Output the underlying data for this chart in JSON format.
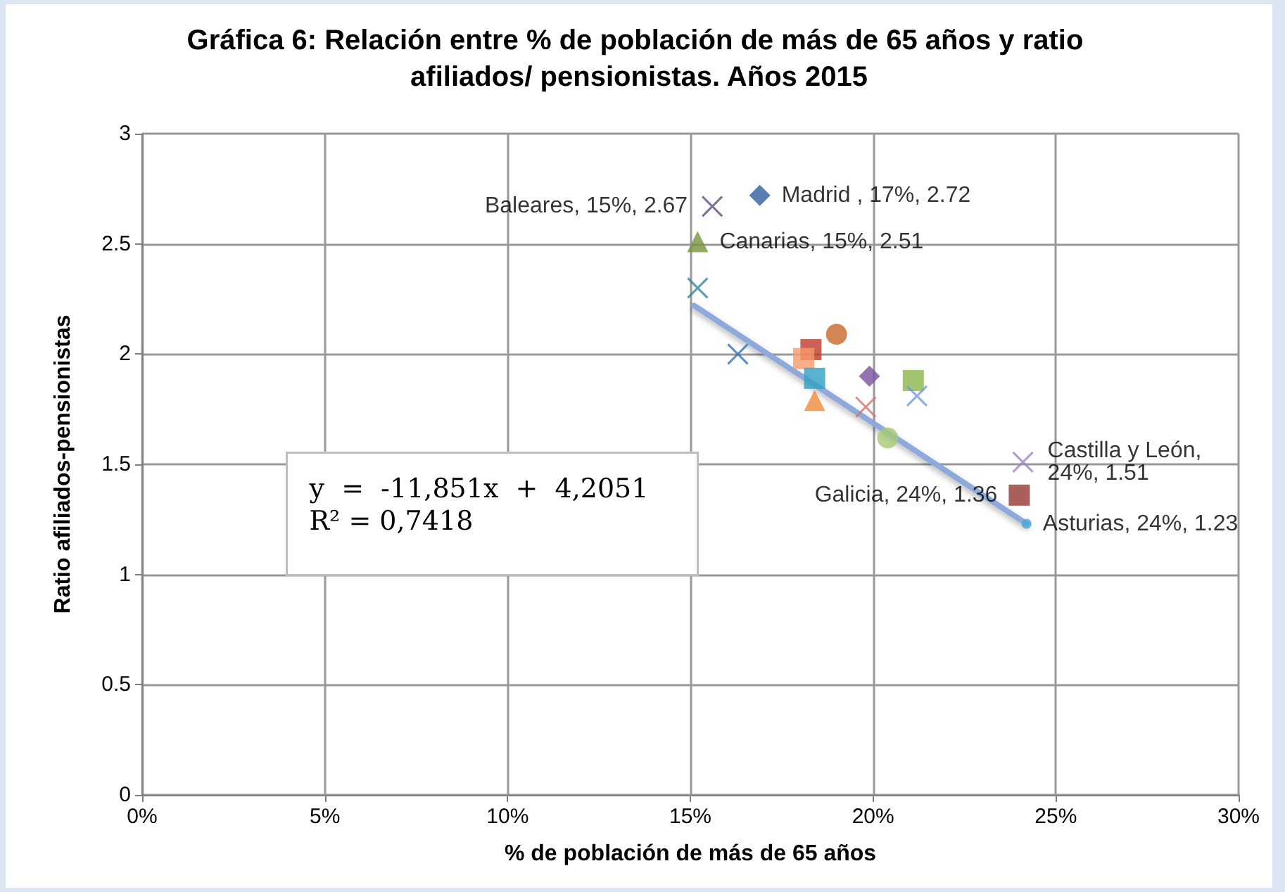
{
  "chart_data": {
    "type": "scatter",
    "title": "Gráfica 6: Relación entre % de población de más de 65 años y ratio afiliados/ pensionistas. Años 2015",
    "xlabel": "% de población de más de 65 años",
    "ylabel": "Ratio afiliados-pensionistas",
    "xlim": [
      0,
      30
    ],
    "xticks": [
      {
        "value": 0,
        "label": "0%"
      },
      {
        "value": 5,
        "label": "5%"
      },
      {
        "value": 10,
        "label": "10%"
      },
      {
        "value": 15,
        "label": "15%"
      },
      {
        "value": 20,
        "label": "20%"
      },
      {
        "value": 25,
        "label": "25%"
      },
      {
        "value": 30,
        "label": "30%"
      }
    ],
    "ylim": [
      0,
      3
    ],
    "yticks": [
      0,
      0.5,
      1,
      1.5,
      2,
      2.5,
      3
    ],
    "grid": true,
    "annotations": [
      "y  =  -11,851x  +  4,2051",
      "R² = 0,7418"
    ],
    "series": [
      {
        "color": "#604a7b",
        "marker": "cross",
        "x": [
          15.6
        ],
        "values": [
          2.67
        ],
        "value_labels": [
          "Baleares, 15%, 2.67"
        ]
      },
      {
        "color": "#2e5c9e",
        "marker": "diamond",
        "x": [
          16.9
        ],
        "values": [
          2.72
        ],
        "value_labels": [
          "Madrid , 17%, 2.72"
        ]
      },
      {
        "color": "#77933c",
        "marker": "triangle",
        "x": [
          15.2
        ],
        "values": [
          2.51
        ],
        "value_labels": [
          "Canarias, 15%, 2.51"
        ]
      },
      {
        "color": "#31859c",
        "marker": "cross",
        "x": [
          15.2
        ],
        "values": [
          2.3
        ]
      },
      {
        "color": "#c8682a",
        "marker": "circle",
        "x": [
          19.0
        ],
        "values": [
          2.09
        ]
      },
      {
        "color": "#2f6fc0",
        "marker": "cross",
        "x": [
          16.3
        ],
        "values": [
          2.0
        ]
      },
      {
        "color": "#c0392b",
        "marker": "square",
        "x": [
          18.3
        ],
        "values": [
          2.02
        ]
      },
      {
        "color": "#f79a6a",
        "marker": "square",
        "x": [
          18.1
        ],
        "values": [
          1.98
        ]
      },
      {
        "color": "#31a0bf",
        "marker": "square",
        "x": [
          18.4
        ],
        "values": [
          1.89
        ]
      },
      {
        "color": "#f0883a",
        "marker": "triangle",
        "x": [
          18.4
        ],
        "values": [
          1.79
        ]
      },
      {
        "color": "#7a50a0",
        "marker": "diamond",
        "x": [
          19.9
        ],
        "values": [
          1.9
        ]
      },
      {
        "color": "#8cb54b",
        "marker": "square",
        "x": [
          21.1
        ],
        "values": [
          1.88
        ]
      },
      {
        "color": "#6f9bdd",
        "marker": "cross",
        "x": [
          21.2
        ],
        "values": [
          1.81
        ]
      },
      {
        "color": "#d07070",
        "marker": "cross",
        "x": [
          19.8
        ],
        "values": [
          1.76
        ]
      },
      {
        "color": "#a8c878",
        "marker": "circle",
        "x": [
          20.4
        ],
        "values": [
          1.62
        ]
      },
      {
        "color": "#a080c8",
        "marker": "cross",
        "x": [
          24.1
        ],
        "values": [
          1.51
        ],
        "value_labels": [
          "Castilla y León, 24%, 1.51"
        ]
      },
      {
        "color": "#953735",
        "marker": "square",
        "x": [
          24.0
        ],
        "values": [
          1.36
        ],
        "value_labels": [
          "Galicia, 24%, 1.36"
        ]
      },
      {
        "color": "#4ba6d8",
        "marker": "circle",
        "x": [
          24.2
        ],
        "values": [
          1.23
        ],
        "value_labels": [
          "Asturias, 24%, 1.23"
        ]
      },
      {
        "type": "line",
        "color": "#8eaadb",
        "marker": "none",
        "line_style": "solid",
        "x": [
          15.1,
          24.2
        ],
        "values": [
          2.22,
          1.23
        ]
      }
    ]
  }
}
